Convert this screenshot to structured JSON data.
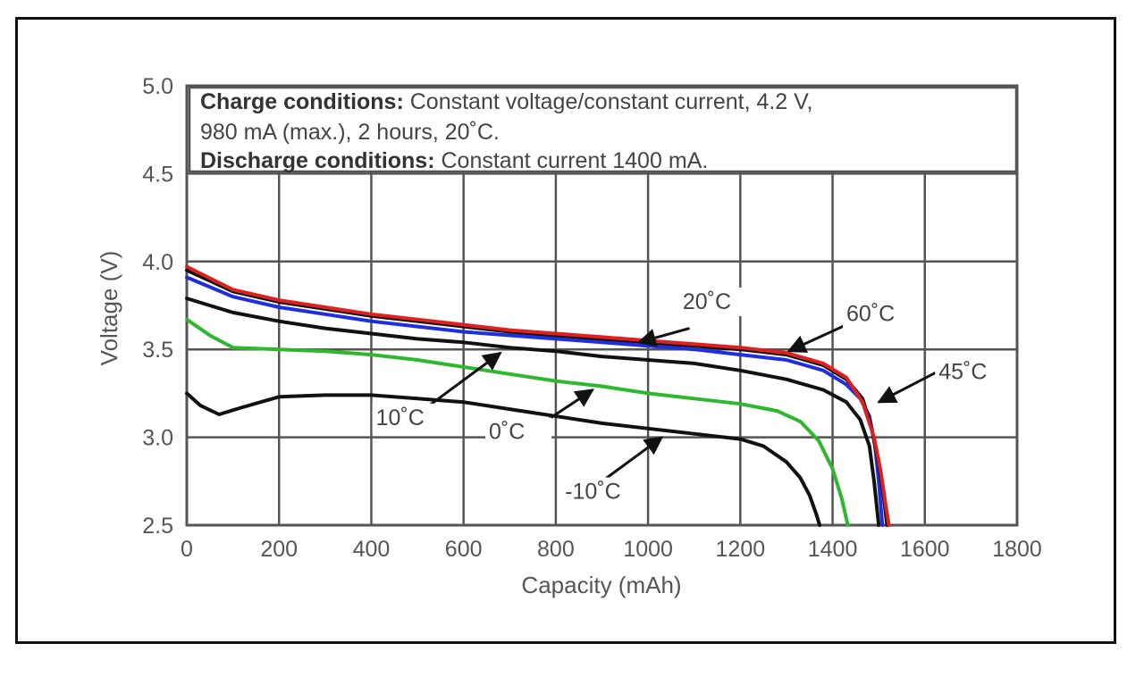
{
  "chart_data": {
    "type": "line",
    "title": "",
    "xlabel": "Capacity (mAh)",
    "ylabel": "Voltage (V)",
    "xlim": [
      0,
      1800
    ],
    "ylim": [
      2.5,
      5.0
    ],
    "x_ticks": [
      0,
      200,
      400,
      600,
      800,
      1000,
      1200,
      1400,
      1600,
      1800
    ],
    "y_ticks": [
      2.5,
      3.0,
      3.5,
      4.0,
      4.5,
      5.0
    ],
    "x_tick_labels": [
      "0",
      "200",
      "400",
      "600",
      "800",
      "1000",
      "1200",
      "1400",
      "1600",
      "1800"
    ],
    "y_tick_labels": [
      "2.5",
      "3.0",
      "3.5",
      "4.0",
      "4.5",
      "5.0"
    ],
    "grid": true,
    "conditions": {
      "charge_heading": "Charge conditions:",
      "charge_text_line1": " Constant voltage/constant current, 4.2 V,",
      "charge_text_line2": "980 mA (max.), 2 hours, 20˚C.",
      "discharge_heading": "Discharge conditions:",
      "discharge_text": " Constant current 1400 mA."
    },
    "series": [
      {
        "name": "-10˚C",
        "color": "#111111",
        "x": [
          0,
          30,
          70,
          120,
          200,
          300,
          400,
          500,
          600,
          700,
          800,
          900,
          1000,
          1100,
          1200,
          1250,
          1300,
          1330,
          1350,
          1365,
          1372
        ],
        "y": [
          3.25,
          3.18,
          3.13,
          3.17,
          3.23,
          3.24,
          3.24,
          3.22,
          3.2,
          3.16,
          3.12,
          3.08,
          3.05,
          3.02,
          2.99,
          2.95,
          2.86,
          2.77,
          2.67,
          2.56,
          2.5
        ]
      },
      {
        "name": "0˚C",
        "color": "#2db82d",
        "x": [
          0,
          50,
          100,
          200,
          300,
          400,
          500,
          600,
          700,
          800,
          900,
          1000,
          1100,
          1200,
          1280,
          1330,
          1370,
          1400,
          1420,
          1433
        ],
        "y": [
          3.67,
          3.58,
          3.51,
          3.5,
          3.49,
          3.47,
          3.44,
          3.4,
          3.36,
          3.32,
          3.29,
          3.25,
          3.22,
          3.19,
          3.15,
          3.09,
          2.98,
          2.82,
          2.65,
          2.5
        ]
      },
      {
        "name": "10˚C",
        "color": "#111111",
        "x": [
          0,
          100,
          200,
          300,
          400,
          500,
          600,
          700,
          800,
          900,
          1000,
          1100,
          1200,
          1300,
          1380,
          1430,
          1460,
          1480,
          1490,
          1500
        ],
        "y": [
          3.79,
          3.71,
          3.66,
          3.62,
          3.59,
          3.56,
          3.54,
          3.51,
          3.49,
          3.46,
          3.44,
          3.42,
          3.38,
          3.33,
          3.27,
          3.2,
          3.1,
          2.95,
          2.75,
          2.5
        ]
      },
      {
        "name": "45˚C",
        "color": "#1f2fe0",
        "x": [
          0,
          100,
          200,
          300,
          400,
          500,
          600,
          700,
          800,
          900,
          1000,
          1100,
          1200,
          1300,
          1380,
          1430,
          1460,
          1480,
          1492,
          1500,
          1508
        ],
        "y": [
          3.91,
          3.8,
          3.74,
          3.7,
          3.66,
          3.63,
          3.6,
          3.58,
          3.56,
          3.54,
          3.52,
          3.5,
          3.47,
          3.44,
          3.38,
          3.3,
          3.22,
          3.12,
          2.95,
          2.75,
          2.5
        ]
      },
      {
        "name": "60˚C",
        "color": "#111111",
        "x": [
          0,
          100,
          200,
          300,
          400,
          500,
          600,
          700,
          800,
          900,
          1000,
          1100,
          1200,
          1300,
          1380,
          1430,
          1465,
          1485,
          1500,
          1510,
          1518
        ],
        "y": [
          3.95,
          3.83,
          3.77,
          3.73,
          3.69,
          3.66,
          3.63,
          3.6,
          3.58,
          3.56,
          3.54,
          3.52,
          3.5,
          3.47,
          3.41,
          3.33,
          3.22,
          3.05,
          2.85,
          2.68,
          2.5
        ]
      },
      {
        "name": "20˚C",
        "color": "#e01f1f",
        "x": [
          0,
          100,
          200,
          300,
          400,
          500,
          600,
          700,
          800,
          900,
          1000,
          1100,
          1200,
          1300,
          1380,
          1430,
          1465,
          1490,
          1505,
          1515,
          1522
        ],
        "y": [
          3.97,
          3.84,
          3.78,
          3.74,
          3.7,
          3.67,
          3.64,
          3.61,
          3.59,
          3.57,
          3.55,
          3.53,
          3.51,
          3.48,
          3.42,
          3.34,
          3.2,
          3.0,
          2.8,
          2.62,
          2.5
        ]
      }
    ],
    "annotations": [
      {
        "text": "20˚C",
        "label_x": 1075,
        "label_y": 3.73,
        "arrow_from": [
          1090,
          3.62
        ],
        "arrow_to": [
          980,
          3.54
        ]
      },
      {
        "text": "60˚C",
        "label_x": 1430,
        "label_y": 3.66,
        "arrow_from": [
          1430,
          3.64
        ],
        "arrow_to": [
          1305,
          3.49
        ]
      },
      {
        "text": "45˚C",
        "label_x": 1630,
        "label_y": 3.33,
        "arrow_from": [
          1625,
          3.37
        ],
        "arrow_to": [
          1500,
          3.2
        ]
      },
      {
        "text": "10˚C",
        "label_x": 410,
        "label_y": 3.07,
        "arrow_from": [
          520,
          3.17
        ],
        "arrow_to": [
          680,
          3.48
        ]
      },
      {
        "text": "0˚C",
        "label_x": 655,
        "label_y": 2.99,
        "arrow_from": [
          760,
          3.06
        ],
        "arrow_to": [
          880,
          3.27
        ]
      },
      {
        "text": "-10˚C",
        "label_x": 820,
        "label_y": 2.65,
        "arrow_from": [
          890,
          2.73
        ],
        "arrow_to": [
          1030,
          3.0
        ]
      }
    ]
  }
}
